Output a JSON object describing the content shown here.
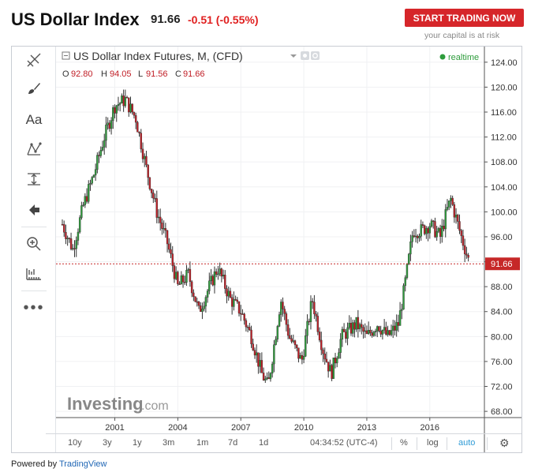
{
  "header": {
    "title": "US Dollar Index",
    "price": "91.66",
    "change": "-0.51 (-0.55%)",
    "trade_button": "START TRADING NOW",
    "risk_note": "your capital is at risk"
  },
  "chart": {
    "instrument_title": "US Dollar Index Futures, M, (CFD)",
    "status": "realtime",
    "ohlc": {
      "o_label": "O",
      "o": "92.80",
      "h_label": "H",
      "h": "94.05",
      "l_label": "L",
      "l": "91.56",
      "c_label": "C",
      "c": "91.66"
    },
    "last_price_label": "91.66",
    "watermark_main": "Investing",
    "watermark_suffix": ".com",
    "colors": {
      "up": "#2e9c3c",
      "down": "#c01d25",
      "price_line": "#c62828",
      "accent": "#2f9bd6"
    }
  },
  "chart_data": {
    "type": "line",
    "title": "US Dollar Index Futures, M, (CFD)",
    "xlabel": "",
    "ylabel": "",
    "x_ticks": [
      "2001",
      "2004",
      "2007",
      "2010",
      "2013",
      "2016"
    ],
    "y_ticks": [
      "68.00",
      "72.00",
      "76.00",
      "80.00",
      "84.00",
      "88.00",
      "92.00",
      "96.00",
      "100.00",
      "104.00",
      "108.00",
      "112.00",
      "116.00",
      "120.00",
      "124.00"
    ],
    "ylim": [
      67,
      126
    ],
    "xlim": [
      1998.2,
      2018.6
    ],
    "series": [
      {
        "x": [
          1998.5,
          1999.0,
          1999.5,
          2000.0,
          2000.5,
          2001.0,
          2001.5,
          2002.0,
          2002.5,
          2003.0,
          2003.5,
          2004.0,
          2004.5,
          2005.0,
          2005.5,
          2005.9,
          2006.5,
          2007.0,
          2007.5,
          2008.0,
          2008.3,
          2008.9,
          2009.3,
          2009.9,
          2010.4,
          2010.9,
          2011.3,
          2011.8,
          2012.5,
          2013.0,
          2013.5,
          2014.0,
          2014.5,
          2014.8,
          2015.2,
          2015.6,
          2016.0,
          2016.5,
          2016.8,
          2017.0,
          2017.5,
          2017.9
        ],
        "values": [
          98,
          94,
          101,
          106,
          112,
          117,
          118,
          115,
          107,
          100,
          95,
          88,
          90,
          84,
          88,
          91,
          86,
          84,
          80,
          74,
          72,
          86,
          80,
          76,
          86,
          78,
          74,
          80,
          82,
          80,
          82,
          80,
          82,
          88,
          97,
          97,
          98,
          96,
          100,
          102,
          96,
          91.66
        ]
      }
    ]
  },
  "bottombar": {
    "ranges": [
      "10y",
      "3y",
      "1y",
      "3m",
      "1m",
      "7d",
      "1d"
    ],
    "time": "04:34:52 (UTC-4)",
    "percent": "%",
    "log": "log",
    "auto": "auto"
  },
  "footer": {
    "powered_prefix": "Powered by",
    "powered_brand": "TradingView"
  }
}
